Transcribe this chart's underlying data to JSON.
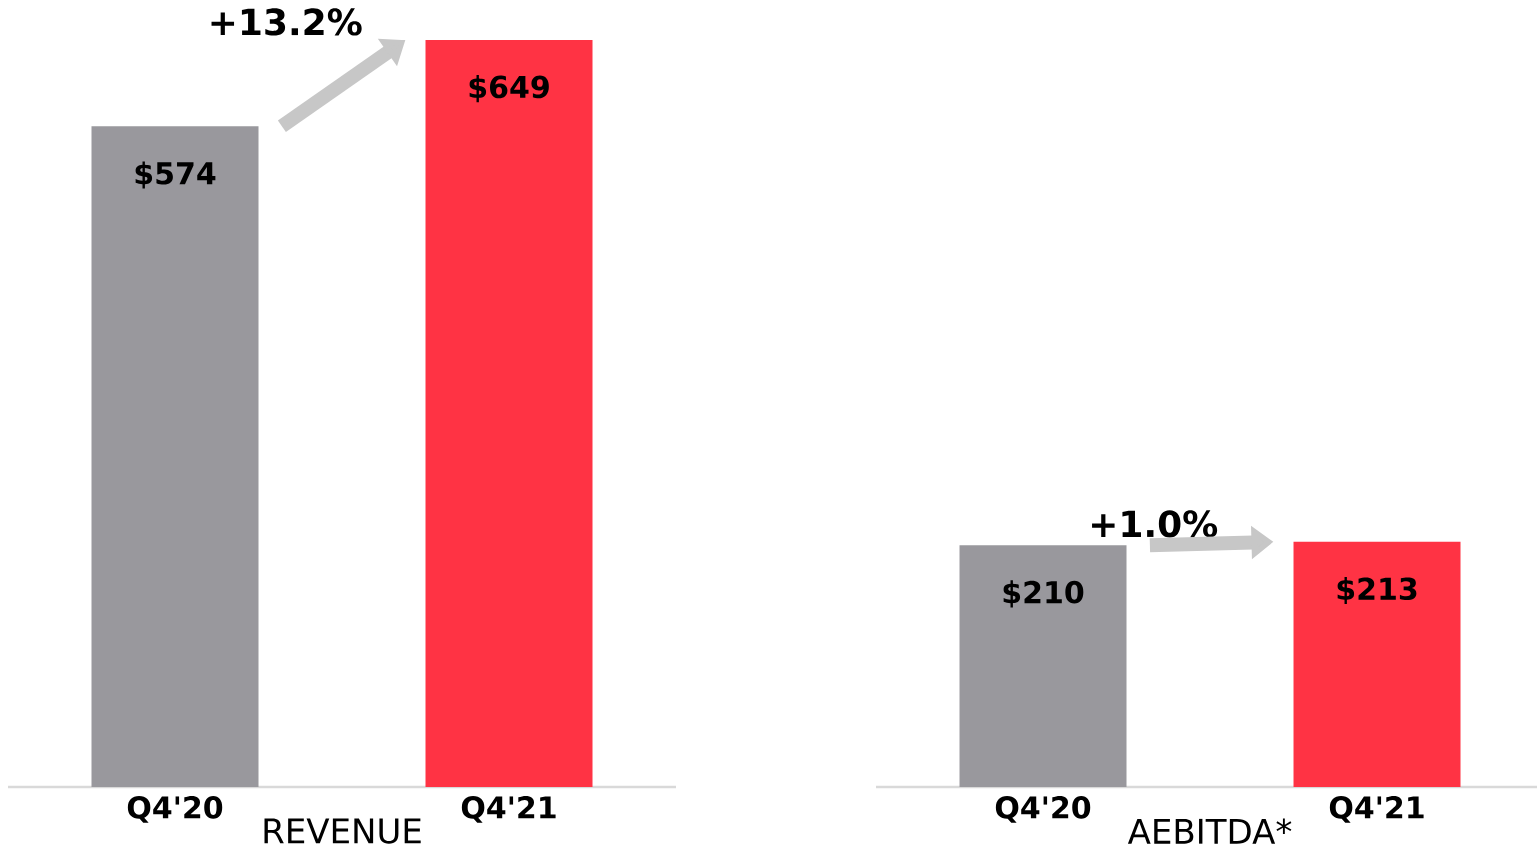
{
  "chart_data": [
    {
      "type": "bar",
      "categories": [
        "Q4'20",
        "Q4'21"
      ],
      "values": [
        574,
        649
      ],
      "colors": [
        "#99989d",
        "#ff3344"
      ],
      "value_labels": [
        "$574",
        "$649"
      ],
      "xlabel": "REVENUE",
      "annotations": [
        "+13.2%"
      ]
    },
    {
      "type": "bar",
      "categories": [
        "Q4'20",
        "Q4'21"
      ],
      "values": [
        210,
        213
      ],
      "colors": [
        "#99989d",
        "#ff3344"
      ],
      "value_labels": [
        "$210",
        "$213"
      ],
      "xlabel": "AEBITDA*",
      "annotations": [
        "+1.0%"
      ]
    }
  ]
}
